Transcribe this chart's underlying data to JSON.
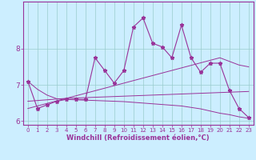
{
  "bg_color": "#cceeff",
  "grid_color": "#99cccc",
  "line_color": "#993399",
  "x_vals": [
    0,
    1,
    2,
    3,
    4,
    5,
    6,
    7,
    8,
    9,
    10,
    11,
    12,
    13,
    14,
    15,
    16,
    17,
    18,
    19,
    20,
    21,
    22,
    23
  ],
  "y_main": [
    7.1,
    6.35,
    6.45,
    6.55,
    6.6,
    6.6,
    6.6,
    7.75,
    7.4,
    7.05,
    7.4,
    8.6,
    8.85,
    8.15,
    8.05,
    7.75,
    8.65,
    7.75,
    7.35,
    7.6,
    7.6,
    6.85,
    6.35,
    6.1
  ],
  "y_trend_up": [
    6.35,
    6.42,
    6.49,
    6.56,
    6.63,
    6.7,
    6.77,
    6.84,
    6.91,
    6.98,
    7.05,
    7.12,
    7.19,
    7.26,
    7.33,
    7.4,
    7.47,
    7.54,
    7.61,
    7.68,
    7.75,
    7.65,
    7.55,
    7.5
  ],
  "y_trend_mid": [
    6.55,
    6.57,
    6.59,
    6.61,
    6.63,
    6.64,
    6.65,
    6.66,
    6.67,
    6.68,
    6.69,
    6.7,
    6.71,
    6.72,
    6.73,
    6.74,
    6.75,
    6.76,
    6.77,
    6.78,
    6.79,
    6.8,
    6.81,
    6.82
  ],
  "y_trend_down": [
    7.1,
    6.88,
    6.72,
    6.62,
    6.6,
    6.59,
    6.58,
    6.57,
    6.56,
    6.55,
    6.54,
    6.52,
    6.5,
    6.48,
    6.46,
    6.44,
    6.42,
    6.38,
    6.34,
    6.28,
    6.22,
    6.18,
    6.12,
    6.08
  ],
  "ylim": [
    5.9,
    9.3
  ],
  "xlim": [
    -0.5,
    23.5
  ],
  "yticks": [
    6,
    7,
    8
  ],
  "xticks": [
    0,
    1,
    2,
    3,
    4,
    5,
    6,
    7,
    8,
    9,
    10,
    11,
    12,
    13,
    14,
    15,
    16,
    17,
    18,
    19,
    20,
    21,
    22,
    23
  ],
  "tick_label_fontsize": 5.0,
  "xlabel": "Windchill (Refroidissement éolien,°C)",
  "xlabel_fontsize": 6.0,
  "axis_label_color": "#993399",
  "tick_color": "#993399",
  "axis_line_color": "#993399"
}
